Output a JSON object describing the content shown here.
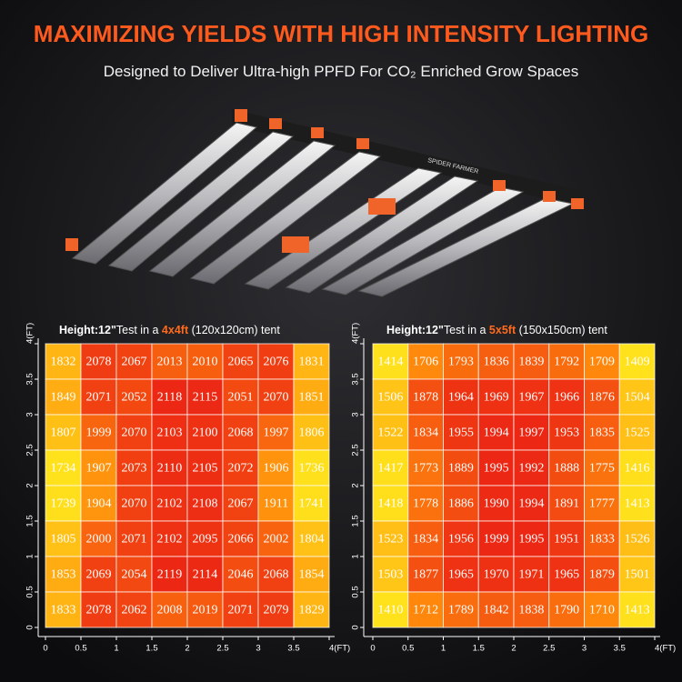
{
  "header": {
    "title": "MAXIMIZING YIELDS WITH HIGH INTENSITY LIGHTING",
    "subtitle": "Designed to Deliver Ultra-high PPFD For CO₂ Enriched Grow Spaces",
    "brand": "SPIDER FARMER"
  },
  "chart_data": [
    {
      "type": "heatmap",
      "height_label": "Height:12\"",
      "note_prefix": "Test in a ",
      "size": "4x4ft",
      "note_suffix": " (120x120cm) tent",
      "xlim": [
        0,
        4
      ],
      "ylim": [
        0,
        4
      ],
      "xticks": [
        0,
        0.5,
        1,
        1.5,
        2,
        2.5,
        3,
        3.5,
        {
          "value": 4,
          "label": "4(FT)"
        }
      ],
      "yticks": [
        0,
        0.5,
        1,
        1.5,
        2,
        2.5,
        3,
        3.5,
        {
          "value": 4,
          "label": "4(FT)"
        }
      ],
      "colorscale": [
        "#ffe11c",
        "#ff8a0c",
        "#ec2714"
      ],
      "values": [
        [
          1832,
          2078,
          2067,
          2013,
          2010,
          2065,
          2076,
          1831
        ],
        [
          1849,
          2071,
          2052,
          2118,
          2115,
          2051,
          2070,
          1851
        ],
        [
          1807,
          1999,
          2070,
          2103,
          2100,
          2068,
          1997,
          1806
        ],
        [
          1734,
          1907,
          2073,
          2110,
          2105,
          2072,
          1906,
          1736
        ],
        [
          1739,
          1904,
          2070,
          2102,
          2108,
          2067,
          1911,
          1741
        ],
        [
          1805,
          2000,
          2071,
          2102,
          2095,
          2066,
          2002,
          1804
        ],
        [
          1853,
          2069,
          2054,
          2119,
          2114,
          2046,
          2068,
          1854
        ],
        [
          1833,
          2078,
          2062,
          2008,
          2019,
          2071,
          2079,
          1829
        ]
      ]
    },
    {
      "type": "heatmap",
      "height_label": "Height:12\"",
      "note_prefix": "Test in a ",
      "size": "5x5ft",
      "note_suffix": " (150x150cm) tent",
      "xlim": [
        0,
        4
      ],
      "ylim": [
        0,
        4
      ],
      "xticks": [
        0,
        0.5,
        1,
        1.5,
        2,
        2.5,
        3,
        3.5,
        {
          "value": 4,
          "label": "4(FT)"
        }
      ],
      "yticks": [
        0,
        0.5,
        1,
        1.5,
        2,
        2.5,
        3,
        3.5,
        {
          "value": 4,
          "label": "4(FT)"
        }
      ],
      "colorscale": [
        "#ffe11c",
        "#ff8a0c",
        "#ec2714"
      ],
      "values": [
        [
          1414,
          1706,
          1793,
          1836,
          1839,
          1792,
          1709,
          1409
        ],
        [
          1506,
          1878,
          1964,
          1969,
          1967,
          1966,
          1876,
          1504
        ],
        [
          1522,
          1834,
          1955,
          1994,
          1997,
          1953,
          1835,
          1525
        ],
        [
          1417,
          1773,
          1889,
          1995,
          1992,
          1888,
          1775,
          1416
        ],
        [
          1418,
          1778,
          1886,
          1990,
          1994,
          1891,
          1777,
          1413
        ],
        [
          1523,
          1834,
          1956,
          1999,
          1995,
          1951,
          1833,
          1526
        ],
        [
          1503,
          1877,
          1965,
          1970,
          1971,
          1965,
          1879,
          1501
        ],
        [
          1410,
          1712,
          1789,
          1842,
          1838,
          1790,
          1710,
          1413
        ]
      ]
    }
  ]
}
